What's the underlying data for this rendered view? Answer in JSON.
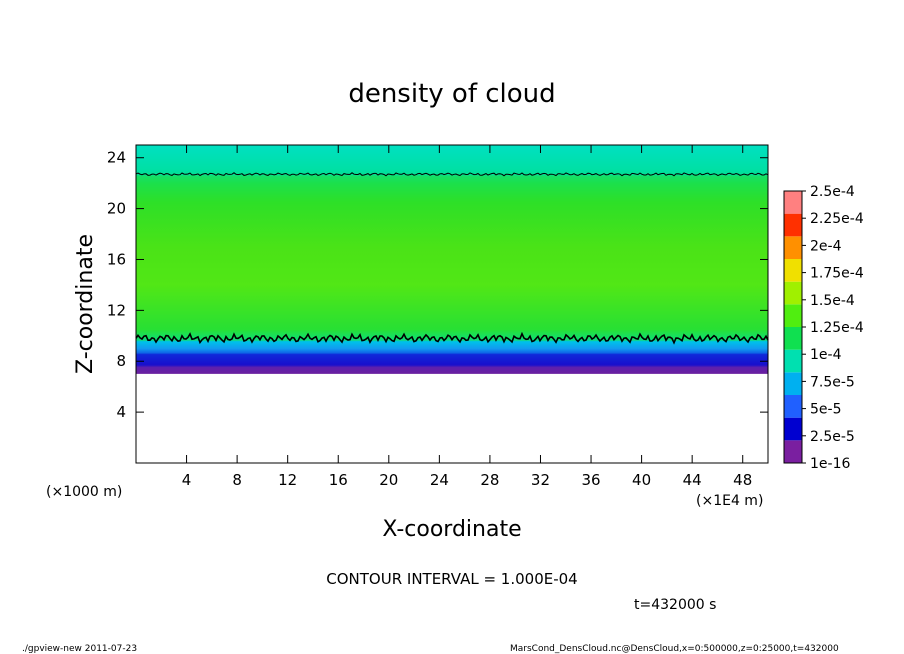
{
  "chart_data": {
    "type": "heatmap",
    "title": "density of cloud",
    "xlabel": "X-coordinate",
    "ylabel": "Z-coordinate",
    "x_unit_label": "(×1E4 m)",
    "y_unit_label": "(×1000 m)",
    "xlim": [
      0,
      50
    ],
    "ylim": [
      0,
      25
    ],
    "x_ticks": [
      4,
      8,
      12,
      16,
      20,
      24,
      28,
      32,
      36,
      40,
      44,
      48
    ],
    "y_ticks": [
      4,
      8,
      12,
      16,
      20,
      24
    ],
    "colorbar": {
      "labels": [
        "1e-16",
        "2.5e-5",
        "5e-5",
        "7.5e-5",
        "1e-4",
        "1.25e-4",
        "1.5e-4",
        "1.75e-4",
        "2e-4",
        "2.25e-4",
        "2.5e-4"
      ],
      "colors": [
        "#7a1fa0",
        "#0000d0",
        "#2060ff",
        "#00b0f0",
        "#00e0b0",
        "#10e050",
        "#50ee10",
        "#a0f000",
        "#f0e000",
        "#ff9000",
        "#ff3000",
        "#ff8080"
      ]
    },
    "layers": [
      {
        "z_min": 7.0,
        "z_max": 7.6,
        "density": "1e-16 to 2.5e-5",
        "color": "#6a1fa0"
      },
      {
        "z_min": 7.6,
        "z_max": 8.6,
        "density": "2.5e-5 to 5e-5",
        "color": "#1010c8"
      },
      {
        "z_min": 8.6,
        "z_max": 9.6,
        "density": "5e-5 to 1e-4",
        "color": "#00a8f0"
      },
      {
        "z_min": 9.6,
        "z_max": 22.6,
        "density": "1e-4 to 1.5e-4",
        "color": "#40e010"
      },
      {
        "z_min": 22.6,
        "z_max": 25.0,
        "density": "7.5e-5 to 1e-4",
        "color": "#00e0b0"
      }
    ],
    "contour_levels": [
      0.0001
    ],
    "contour_heights": [
      9.8,
      22.7
    ],
    "contour_interval": "CONTOUR INTERVAL = 1.000E-04",
    "grid": false
  },
  "annotations": {
    "time": "t=432000 s",
    "footer_left": "./gpview-new   2011-07-23",
    "footer_right": "MarsCond_DensCloud.nc@DensCloud,x=0:500000,z=0:25000,t=432000"
  }
}
